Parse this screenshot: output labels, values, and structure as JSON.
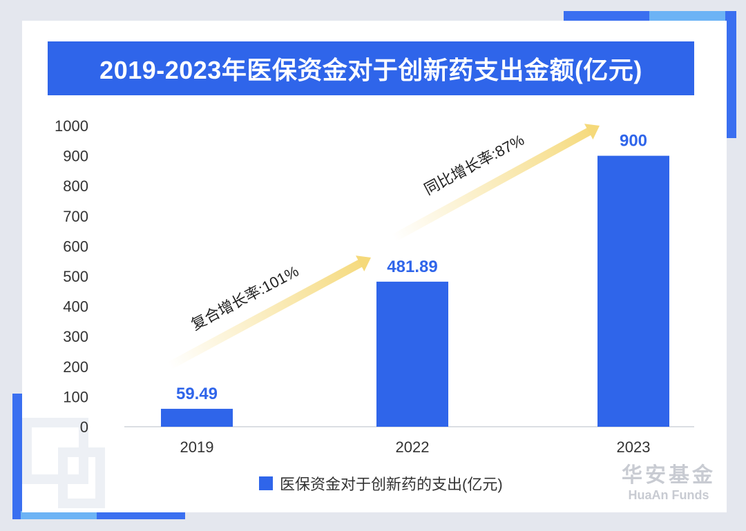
{
  "title": "2019-2023年医保资金对于创新药支出金额(亿元)",
  "chart_data": {
    "type": "bar",
    "categories": [
      "2019",
      "2022",
      "2023"
    ],
    "series": [
      {
        "name": "医保资金对于创新药的支出(亿元)",
        "values": [
          59.49,
          481.89,
          900
        ]
      }
    ],
    "value_labels": [
      "59.49",
      "481.89",
      "900"
    ],
    "y_ticks": [
      "0",
      "100",
      "200",
      "300",
      "400",
      "500",
      "600",
      "700",
      "800",
      "900",
      "1000"
    ],
    "ylim": [
      0,
      1000
    ],
    "grid": false,
    "legend_position": "bottom-center",
    "annotations": [
      {
        "text": "复合增长率:101%",
        "from": "2019",
        "to": "2022"
      },
      {
        "text": "同比增长率:87%",
        "from": "2022",
        "to": "2023"
      }
    ],
    "bar_color": "#2f65ea",
    "label_color": "#2f65ea",
    "arrow_color": "#f5d97a"
  },
  "brand": {
    "cn": "华安基金",
    "en": "HuaAn Funds"
  }
}
